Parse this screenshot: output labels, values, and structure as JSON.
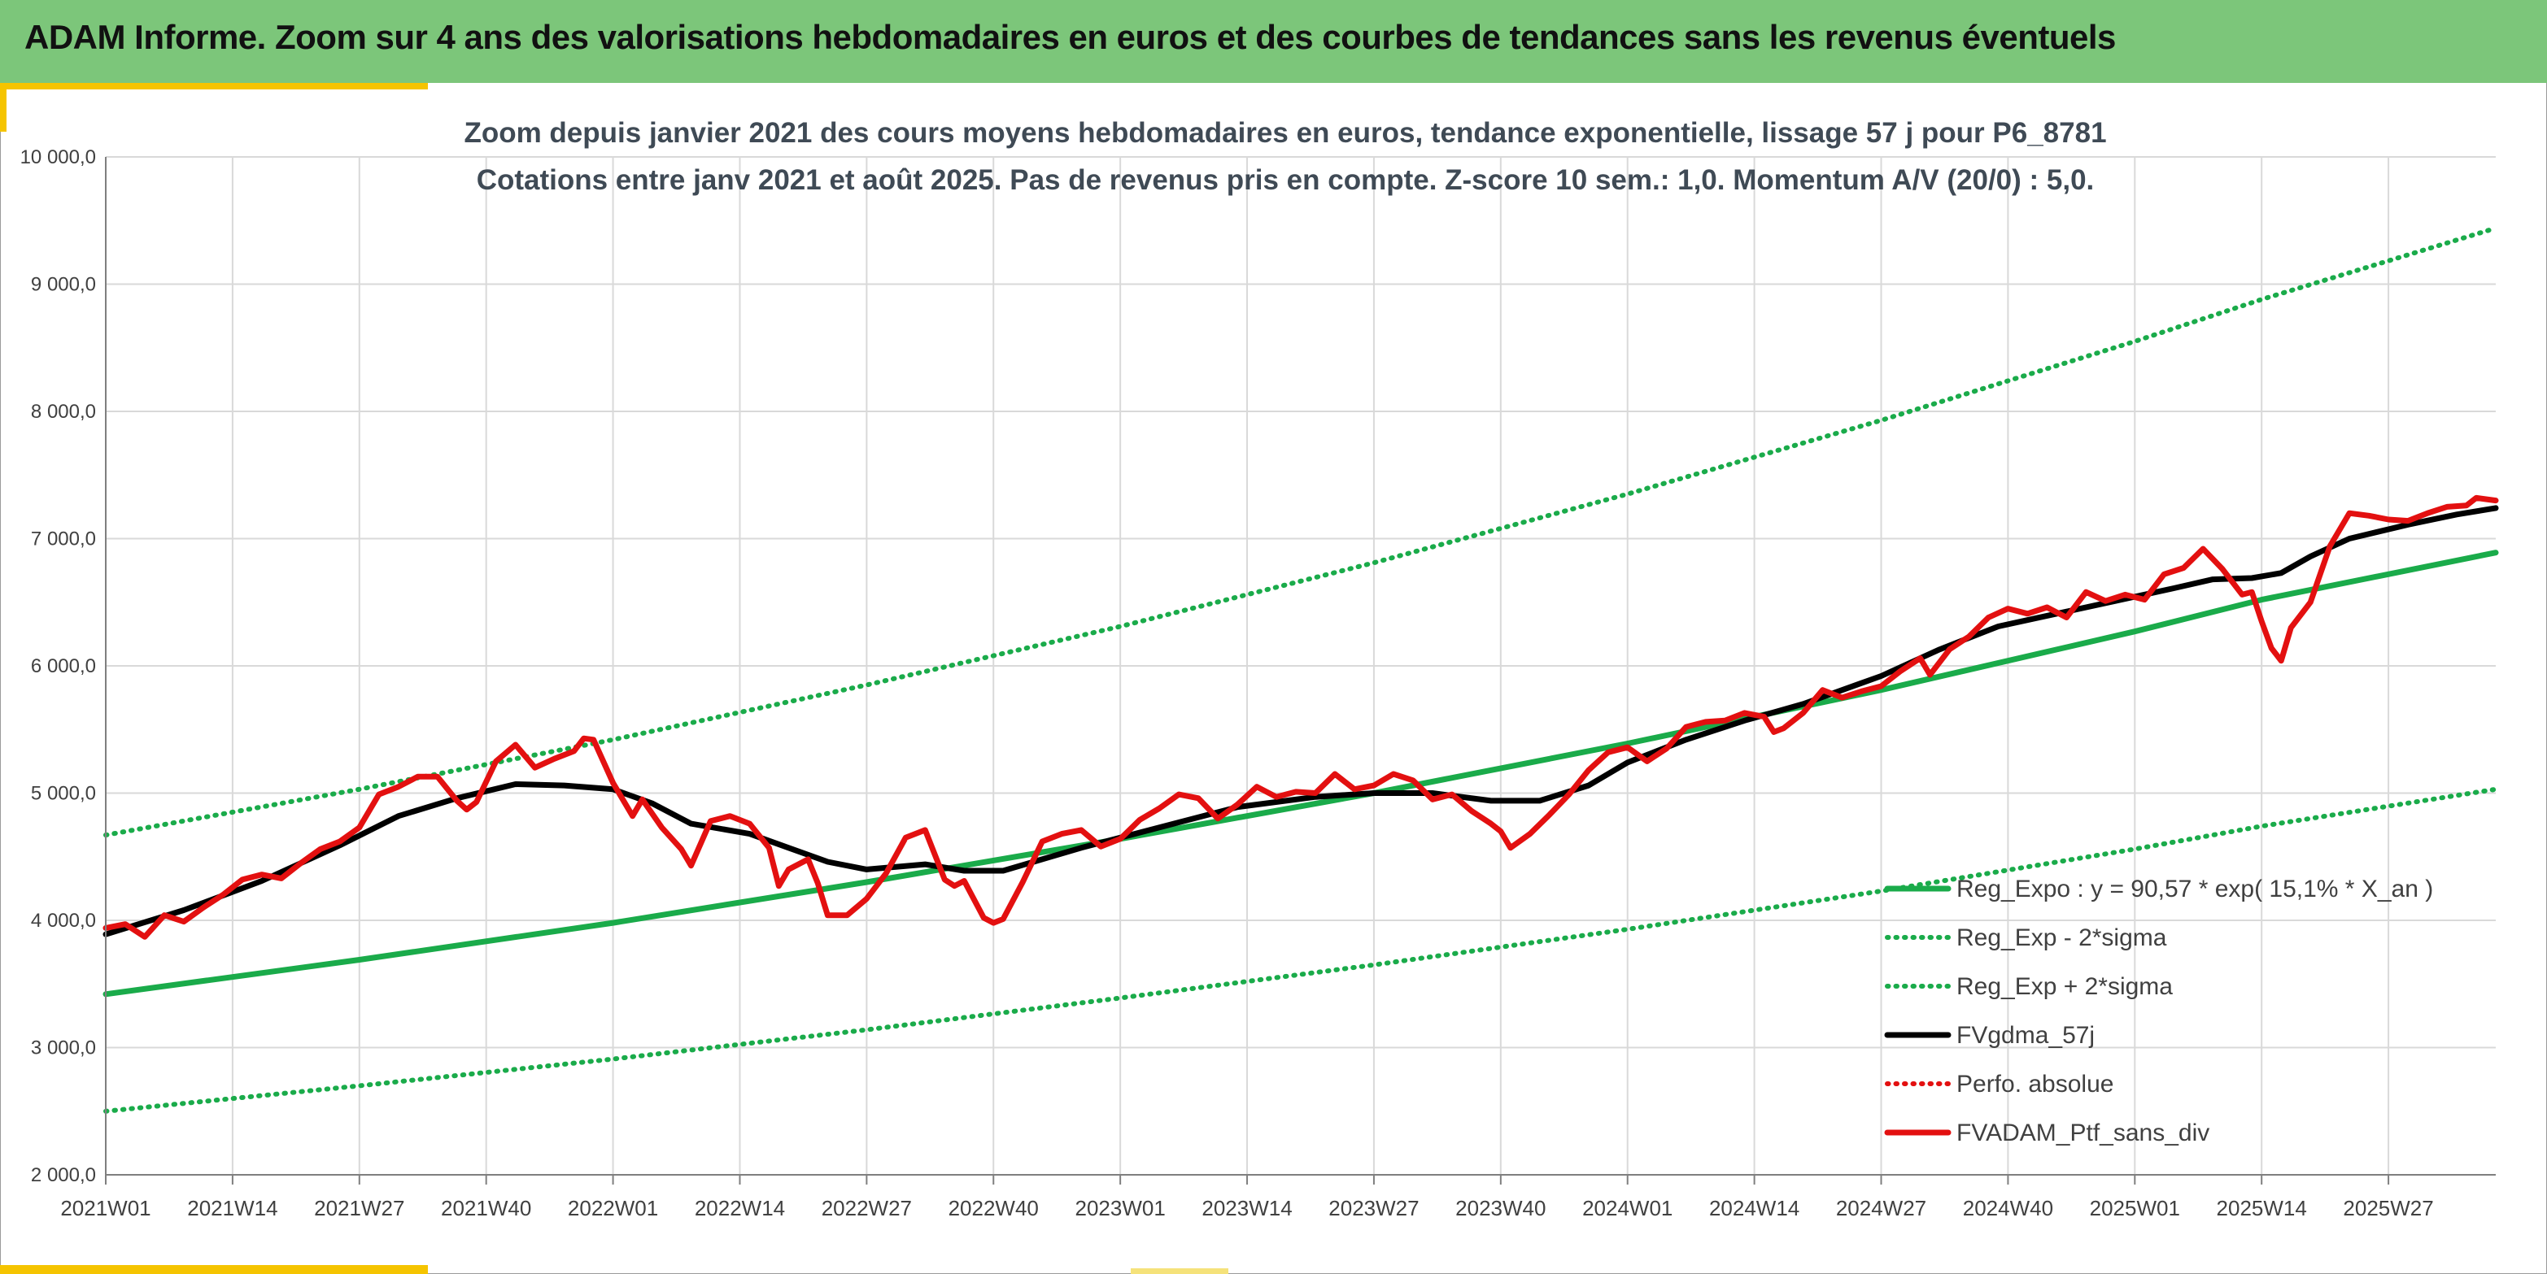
{
  "header": {
    "title": "ADAM Informe. Zoom sur 4 ans des valorisations hebdomadaires en euros et des courbes de tendances sans les revenus éventuels"
  },
  "colors": {
    "header_bg": "#7cc67a",
    "trend": "#1aab4a",
    "bands": "#1aab4a",
    "smooth": "#000000",
    "perf": "#e31010",
    "accent": "#f5c400"
  },
  "chart_data": {
    "type": "line",
    "title_lines": [
      "Zoom depuis janvier 2021 des cours moyens hebdomadaires en euros, tendance exponentielle, lissage 57 j pour P6_8781",
      "Cotations entre janv 2021 et août 2025. Pas de revenus pris en compte. Z-score 10 sem.: 1,0. Momentum A/V (20/0) : 5,0."
    ],
    "ylim": [
      2000,
      10000
    ],
    "y_ticks": [
      "2 000,0",
      "3 000,0",
      "4 000,0",
      "5 000,0",
      "6 000,0",
      "7 000,0",
      "8 000,0",
      "9 000,0",
      "10 000,0"
    ],
    "x_ticks": [
      "2021W01",
      "2021W14",
      "2021W27",
      "2021W40",
      "2022W01",
      "2022W14",
      "2022W27",
      "2022W40",
      "2023W01",
      "2023W14",
      "2023W27",
      "2023W40",
      "2024W01",
      "2024W14",
      "2024W27",
      "2024W40",
      "2025W01",
      "2025W14",
      "2025W27"
    ],
    "x_ticks_week_index": [
      0,
      13,
      26,
      39,
      52,
      65,
      78,
      91,
      104,
      117,
      130,
      143,
      156,
      169,
      182,
      195,
      208,
      221,
      234
    ],
    "x_range_weeks": [
      0,
      245
    ],
    "grid": true,
    "legend_position": "bottom-right",
    "legend": [
      {
        "label": "Reg_Expo : y = 90,57 * exp( 15,1% *  X_an )",
        "color": "#1aab4a",
        "style": "solid"
      },
      {
        "label": "Reg_Exp - 2*sigma",
        "color": "#1aab4a",
        "style": "dotted"
      },
      {
        "label": "Reg_Exp + 2*sigma",
        "color": "#1aab4a",
        "style": "dotted"
      },
      {
        "label": "FVgdma_57j",
        "color": "#000000",
        "style": "solid"
      },
      {
        "label": "Perfo. absolue",
        "color": "#e31010",
        "style": "dotted"
      },
      {
        "label": "FVADAM_Ptf_sans_div",
        "color": "#e31010",
        "style": "solid"
      }
    ],
    "series": [
      {
        "name": "Reg_Expo : y = 90,57 * exp( 15,1% *  X_an )",
        "style": "solid",
        "color": "#1aab4a",
        "points": [
          [
            0,
            3420
          ],
          [
            26,
            3690
          ],
          [
            52,
            3980
          ],
          [
            78,
            4300
          ],
          [
            104,
            4640
          ],
          [
            130,
            5000
          ],
          [
            156,
            5390
          ],
          [
            182,
            5810
          ],
          [
            208,
            6270
          ],
          [
            221,
            6520
          ],
          [
            245,
            6890
          ]
        ]
      },
      {
        "name": "Reg_Exp - 2*sigma",
        "style": "dotted",
        "color": "#1aab4a",
        "points": [
          [
            0,
            2500
          ],
          [
            26,
            2700
          ],
          [
            52,
            2910
          ],
          [
            78,
            3140
          ],
          [
            104,
            3390
          ],
          [
            130,
            3650
          ],
          [
            156,
            3930
          ],
          [
            182,
            4230
          ],
          [
            208,
            4560
          ],
          [
            221,
            4740
          ],
          [
            245,
            5030
          ]
        ]
      },
      {
        "name": "Reg_Exp + 2*sigma",
        "style": "dotted",
        "color": "#1aab4a",
        "points": [
          [
            0,
            4670
          ],
          [
            26,
            5030
          ],
          [
            52,
            5420
          ],
          [
            78,
            5850
          ],
          [
            104,
            6310
          ],
          [
            130,
            6810
          ],
          [
            156,
            7350
          ],
          [
            182,
            7930
          ],
          [
            208,
            8550
          ],
          [
            221,
            8880
          ],
          [
            245,
            9440
          ]
        ]
      },
      {
        "name": "FVgdma_57j",
        "style": "solid",
        "color": "#000000",
        "points": [
          [
            0,
            3890
          ],
          [
            8,
            4080
          ],
          [
            16,
            4310
          ],
          [
            24,
            4590
          ],
          [
            30,
            4820
          ],
          [
            36,
            4960
          ],
          [
            42,
            5070
          ],
          [
            47,
            5060
          ],
          [
            52,
            5030
          ],
          [
            56,
            4920
          ],
          [
            60,
            4760
          ],
          [
            66,
            4680
          ],
          [
            70,
            4570
          ],
          [
            74,
            4460
          ],
          [
            78,
            4400
          ],
          [
            84,
            4440
          ],
          [
            88,
            4390
          ],
          [
            92,
            4390
          ],
          [
            96,
            4480
          ],
          [
            100,
            4570
          ],
          [
            104,
            4650
          ],
          [
            110,
            4770
          ],
          [
            116,
            4890
          ],
          [
            124,
            4970
          ],
          [
            130,
            5000
          ],
          [
            136,
            5000
          ],
          [
            142,
            4940
          ],
          [
            147,
            4940
          ],
          [
            152,
            5060
          ],
          [
            156,
            5240
          ],
          [
            162,
            5420
          ],
          [
            168,
            5570
          ],
          [
            174,
            5700
          ],
          [
            182,
            5920
          ],
          [
            188,
            6130
          ],
          [
            194,
            6310
          ],
          [
            200,
            6410
          ],
          [
            206,
            6510
          ],
          [
            212,
            6610
          ],
          [
            216,
            6680
          ],
          [
            220,
            6690
          ],
          [
            223,
            6730
          ],
          [
            226,
            6860
          ],
          [
            230,
            7000
          ],
          [
            236,
            7110
          ],
          [
            241,
            7190
          ],
          [
            245,
            7240
          ]
        ]
      },
      {
        "name": "FVADAM_Ptf_sans_div",
        "style": "solid",
        "color": "#e31010",
        "points": [
          [
            0,
            3940
          ],
          [
            2,
            3970
          ],
          [
            4,
            3870
          ],
          [
            6,
            4040
          ],
          [
            8,
            3990
          ],
          [
            10,
            4100
          ],
          [
            12,
            4200
          ],
          [
            14,
            4320
          ],
          [
            16,
            4360
          ],
          [
            18,
            4330
          ],
          [
            20,
            4450
          ],
          [
            22,
            4560
          ],
          [
            24,
            4620
          ],
          [
            26,
            4730
          ],
          [
            28,
            4990
          ],
          [
            30,
            5050
          ],
          [
            32,
            5130
          ],
          [
            34,
            5130
          ],
          [
            36,
            4940
          ],
          [
            37,
            4870
          ],
          [
            38,
            4930
          ],
          [
            40,
            5250
          ],
          [
            42,
            5380
          ],
          [
            44,
            5200
          ],
          [
            46,
            5270
          ],
          [
            48,
            5330
          ],
          [
            49,
            5430
          ],
          [
            50,
            5420
          ],
          [
            52,
            5080
          ],
          [
            54,
            4820
          ],
          [
            55,
            4950
          ],
          [
            57,
            4730
          ],
          [
            59,
            4560
          ],
          [
            60,
            4430
          ],
          [
            62,
            4780
          ],
          [
            64,
            4820
          ],
          [
            66,
            4760
          ],
          [
            68,
            4570
          ],
          [
            69,
            4270
          ],
          [
            70,
            4400
          ],
          [
            72,
            4480
          ],
          [
            73,
            4290
          ],
          [
            74,
            4040
          ],
          [
            76,
            4040
          ],
          [
            78,
            4170
          ],
          [
            80,
            4370
          ],
          [
            82,
            4650
          ],
          [
            84,
            4710
          ],
          [
            86,
            4320
          ],
          [
            87,
            4270
          ],
          [
            88,
            4310
          ],
          [
            90,
            4020
          ],
          [
            91,
            3980
          ],
          [
            92,
            4010
          ],
          [
            94,
            4300
          ],
          [
            96,
            4620
          ],
          [
            98,
            4680
          ],
          [
            100,
            4710
          ],
          [
            102,
            4580
          ],
          [
            104,
            4640
          ],
          [
            106,
            4790
          ],
          [
            108,
            4880
          ],
          [
            110,
            4990
          ],
          [
            112,
            4960
          ],
          [
            114,
            4800
          ],
          [
            116,
            4910
          ],
          [
            118,
            5050
          ],
          [
            120,
            4970
          ],
          [
            122,
            5010
          ],
          [
            124,
            5000
          ],
          [
            126,
            5150
          ],
          [
            128,
            5030
          ],
          [
            130,
            5060
          ],
          [
            132,
            5150
          ],
          [
            134,
            5100
          ],
          [
            136,
            4950
          ],
          [
            138,
            4990
          ],
          [
            140,
            4860
          ],
          [
            142,
            4760
          ],
          [
            143,
            4700
          ],
          [
            144,
            4570
          ],
          [
            146,
            4680
          ],
          [
            148,
            4830
          ],
          [
            150,
            4990
          ],
          [
            152,
            5180
          ],
          [
            154,
            5320
          ],
          [
            156,
            5360
          ],
          [
            158,
            5250
          ],
          [
            160,
            5350
          ],
          [
            162,
            5520
          ],
          [
            164,
            5560
          ],
          [
            166,
            5570
          ],
          [
            168,
            5630
          ],
          [
            170,
            5600
          ],
          [
            171,
            5480
          ],
          [
            172,
            5510
          ],
          [
            174,
            5630
          ],
          [
            176,
            5810
          ],
          [
            178,
            5750
          ],
          [
            180,
            5800
          ],
          [
            182,
            5840
          ],
          [
            184,
            5960
          ],
          [
            186,
            6060
          ],
          [
            187,
            5930
          ],
          [
            189,
            6130
          ],
          [
            191,
            6230
          ],
          [
            193,
            6380
          ],
          [
            195,
            6450
          ],
          [
            197,
            6410
          ],
          [
            199,
            6460
          ],
          [
            201,
            6380
          ],
          [
            203,
            6580
          ],
          [
            205,
            6510
          ],
          [
            207,
            6560
          ],
          [
            209,
            6520
          ],
          [
            211,
            6720
          ],
          [
            213,
            6770
          ],
          [
            215,
            6920
          ],
          [
            217,
            6760
          ],
          [
            219,
            6560
          ],
          [
            220,
            6580
          ],
          [
            221,
            6350
          ],
          [
            222,
            6140
          ],
          [
            223,
            6040
          ],
          [
            224,
            6300
          ],
          [
            226,
            6500
          ],
          [
            228,
            6940
          ],
          [
            230,
            7200
          ],
          [
            232,
            7180
          ],
          [
            234,
            7150
          ],
          [
            236,
            7140
          ],
          [
            238,
            7200
          ],
          [
            240,
            7250
          ],
          [
            242,
            7260
          ],
          [
            243,
            7320
          ],
          [
            245,
            7300
          ]
        ]
      }
    ]
  }
}
